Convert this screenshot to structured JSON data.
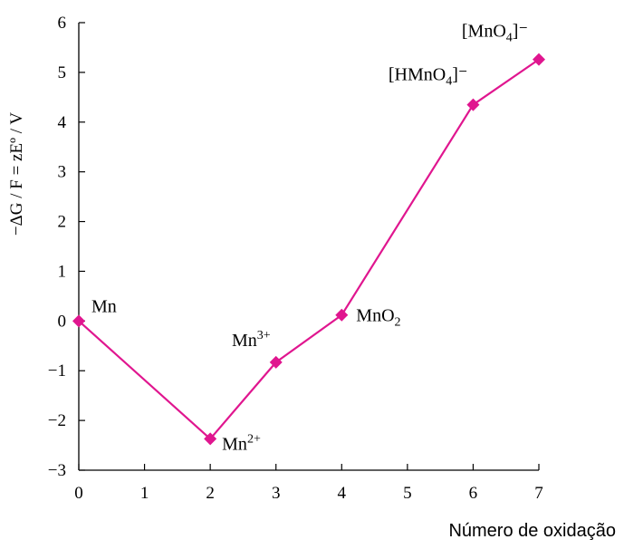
{
  "chart_data": {
    "type": "line",
    "xlabel": "Número de oxidação",
    "ylabel": "−ΔG / F = zEº / V",
    "xlim": [
      0,
      7
    ],
    "ylim": [
      -3,
      6
    ],
    "x_ticks": [
      "0",
      "1",
      "2",
      "3",
      "4",
      "5",
      "6",
      "7"
    ],
    "y_ticks": [
      "−3",
      "−2",
      "−1",
      "0",
      "1",
      "2",
      "3",
      "4",
      "5",
      "6"
    ],
    "line_color": "#e0168f",
    "marker": "diamond",
    "points": [
      {
        "x": 0,
        "y": 0,
        "label": "Mn",
        "sup": "",
        "sub": "",
        "tail": ""
      },
      {
        "x": 2,
        "y": -2.37,
        "label": "Mn",
        "sup": "2+",
        "sub": "",
        "tail": ""
      },
      {
        "x": 3,
        "y": -0.83,
        "label": "Mn",
        "sup": "3+",
        "sub": "",
        "tail": ""
      },
      {
        "x": 4,
        "y": 0.12,
        "label": "MnO",
        "sup": "",
        "sub": "2",
        "tail": ""
      },
      {
        "x": 6,
        "y": 4.35,
        "label": "[HMnO",
        "sup": "",
        "sub": "4",
        "tail": "]⁻"
      },
      {
        "x": 7,
        "y": 5.26,
        "label": "[MnO",
        "sup": "",
        "sub": "4",
        "tail": "]⁻"
      }
    ]
  }
}
